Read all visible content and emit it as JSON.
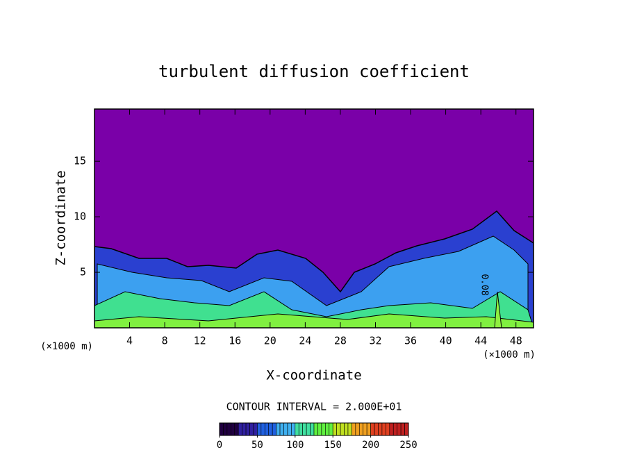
{
  "chart_data": {
    "type": "contour",
    "title": "turbulent diffusion coefficient",
    "x_label": "X-coordinate",
    "y_label": "Z-coordinate",
    "x_unit": "(×1000 m)",
    "x_unit_right": "(×1000 m)",
    "xlim": [
      0,
      50
    ],
    "xticks": [
      4,
      8,
      12,
      16,
      20,
      24,
      28,
      32,
      36,
      40,
      44,
      48
    ],
    "ylim": [
      0,
      19.7
    ],
    "yticks": [
      5,
      10,
      15
    ],
    "contour_label": "0.08",
    "contour_interval": "CONTOUR INTERVAL = 2.000E+01",
    "colorbar": {
      "lim": [
        0,
        250
      ],
      "step": 5,
      "ticks": [
        0,
        50,
        100,
        150,
        200,
        250
      ],
      "colors": [
        "#200040",
        "#3020a0",
        "#2060e0",
        "#40b0f0",
        "#40e0a0",
        "#60f040",
        "#c0e020",
        "#f0a020",
        "#e04020",
        "#c02020"
      ]
    }
  }
}
